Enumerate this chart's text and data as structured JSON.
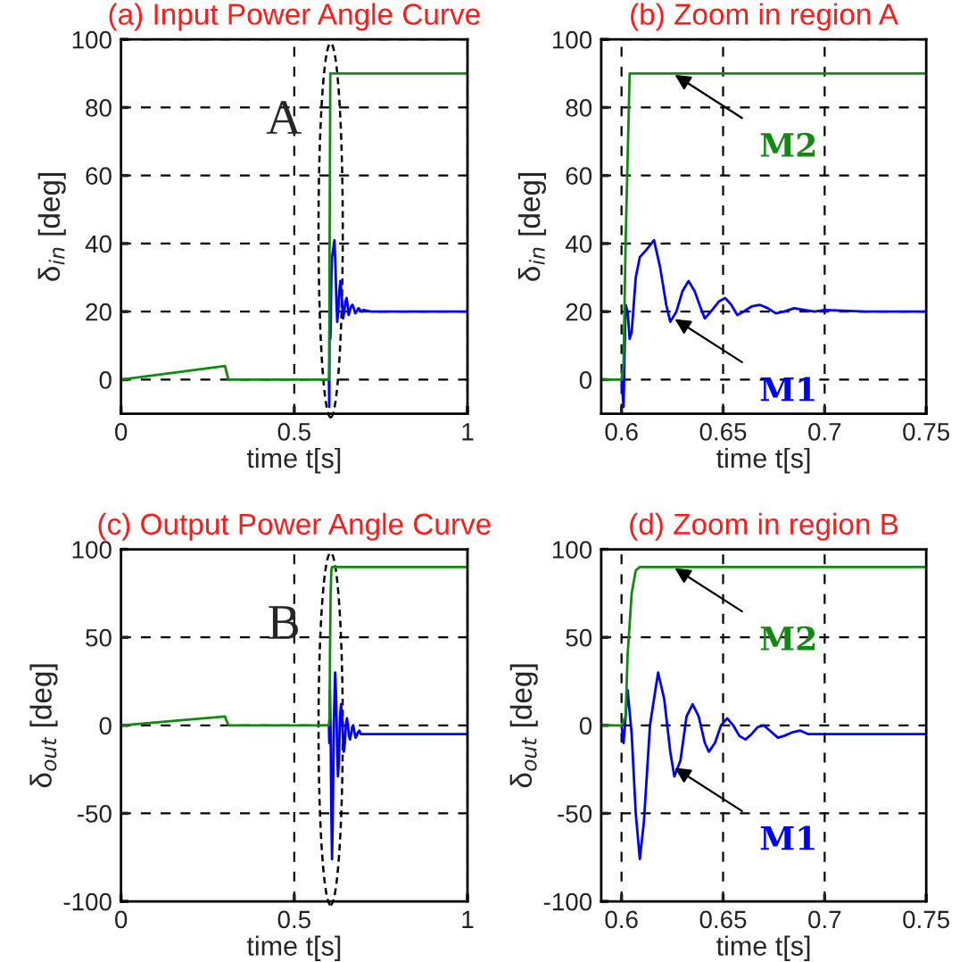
{
  "chart_data": [
    {
      "type": "line",
      "title": "(a) Input Power Angle Curve",
      "xlabel": "time t[s]",
      "ylabel": "δ$_{in}$ [deg]",
      "xlim": [
        0,
        1
      ],
      "xticks": [
        0,
        0.5,
        1
      ],
      "ylim": [
        -10,
        100
      ],
      "yticks": [
        0,
        20,
        40,
        60,
        80,
        100
      ],
      "grid": true,
      "line_style": "solid",
      "annotations": [
        "A"
      ],
      "series": [
        {
          "color": "#0000ff",
          "x": [
            0.6,
            0.601,
            0.602,
            0.603,
            0.604,
            0.605,
            0.607,
            0.609,
            0.612,
            0.616,
            0.619,
            0.622,
            0.624,
            0.627,
            0.63,
            0.633,
            0.636,
            0.639,
            0.641,
            0.644,
            0.648,
            0.651,
            0.654,
            0.657,
            0.66,
            0.664,
            0.668,
            0.672,
            0.676,
            0.68,
            0.685,
            0.69,
            0.695,
            0.7,
            0.72,
            1.0
          ],
          "values": [
            0,
            -8,
            22,
            20,
            12,
            14,
            30,
            36,
            38,
            41,
            33,
            22,
            17,
            20,
            26,
            29,
            26,
            21,
            18,
            20,
            23,
            24,
            22,
            19,
            20,
            21.5,
            22,
            21,
            19.5,
            20,
            21,
            20.5,
            20,
            20.5,
            20,
            20
          ]
        },
        {
          "color": "#108a10",
          "x": [
            0,
            0.3,
            0.31,
            0.6,
            0.601,
            0.602,
            0.603,
            0.604,
            1.0
          ],
          "values": [
            0,
            4,
            0,
            0,
            5,
            40,
            65,
            90,
            90
          ]
        }
      ]
    },
    {
      "type": "line",
      "title": "(b) Zoom in region A",
      "xlabel": "time t[s]",
      "ylabel": "δ$_{in}$ [deg]",
      "xlim": [
        0.59,
        0.75
      ],
      "xticks": [
        0.6,
        0.65,
        0.7,
        0.75
      ],
      "ylim": [
        -10,
        100
      ],
      "yticks": [
        0,
        20,
        40,
        60,
        80,
        100
      ],
      "grid": true,
      "line_style": "solid",
      "series": [
        {
          "name": "M1",
          "color": "#0000ff",
          "x": [
            0.6,
            0.601,
            0.602,
            0.603,
            0.604,
            0.605,
            0.607,
            0.609,
            0.612,
            0.616,
            0.619,
            0.622,
            0.624,
            0.627,
            0.63,
            0.633,
            0.636,
            0.639,
            0.641,
            0.644,
            0.648,
            0.651,
            0.654,
            0.657,
            0.66,
            0.664,
            0.668,
            0.672,
            0.676,
            0.68,
            0.685,
            0.69,
            0.695,
            0.7,
            0.72,
            0.75
          ],
          "values": [
            0,
            -8,
            22,
            20,
            12,
            14,
            30,
            36,
            38,
            41,
            33,
            22,
            17,
            20,
            26,
            29,
            26,
            21,
            18,
            20,
            23,
            24,
            22,
            19,
            20,
            21.5,
            22,
            21,
            19.5,
            20,
            21,
            20.5,
            20,
            20.5,
            20,
            20
          ]
        },
        {
          "name": "M2",
          "color": "#108a10",
          "x": [
            0.59,
            0.6,
            0.601,
            0.602,
            0.603,
            0.604,
            0.75
          ],
          "values": [
            0,
            0,
            5,
            40,
            65,
            90,
            90
          ]
        }
      ]
    },
    {
      "type": "line",
      "title": "(c) Output Power Angle Curve",
      "xlabel": "time t[s]",
      "ylabel": "δ$_{out}$ [deg]",
      "xlim": [
        0,
        1
      ],
      "xticks": [
        0,
        0.5,
        1
      ],
      "ylim": [
        -100,
        100
      ],
      "yticks": [
        -100,
        -50,
        0,
        50,
        100
      ],
      "grid": true,
      "line_style": "solid",
      "annotations": [
        "B"
      ],
      "series": [
        {
          "color": "#0000ff",
          "x": [
            0.6,
            0.601,
            0.603,
            0.605,
            0.607,
            0.609,
            0.611,
            0.614,
            0.618,
            0.621,
            0.624,
            0.626,
            0.629,
            0.632,
            0.635,
            0.638,
            0.641,
            0.643,
            0.646,
            0.649,
            0.652,
            0.655,
            0.658,
            0.661,
            0.664,
            0.667,
            0.67,
            0.673,
            0.677,
            0.68,
            0.684,
            0.688,
            0.692,
            0.7,
            0.72,
            1.0
          ],
          "values": [
            0,
            -10,
            20,
            -5,
            -50,
            -76,
            -55,
            0,
            30,
            15,
            -15,
            -29,
            -20,
            5,
            12,
            5,
            -10,
            -15,
            -10,
            0,
            4,
            0,
            -6,
            -8,
            -5,
            -1,
            0,
            -3,
            -7,
            -6,
            -4,
            -3,
            -5,
            -5,
            -5,
            -5
          ]
        },
        {
          "color": "#108a10",
          "x": [
            0,
            0.3,
            0.31,
            0.6,
            0.602,
            0.603,
            0.605,
            0.607,
            0.609,
            1.0
          ],
          "values": [
            0,
            5,
            0,
            0,
            5,
            40,
            75,
            88,
            90,
            90
          ]
        }
      ]
    },
    {
      "type": "line",
      "title": "(d) Zoom in region B",
      "xlabel": "time t[s]",
      "ylabel": "δ$_{out}$ [deg]",
      "xlim": [
        0.59,
        0.75
      ],
      "xticks": [
        0.6,
        0.65,
        0.7,
        0.75
      ],
      "ylim": [
        -100,
        100
      ],
      "yticks": [
        -100,
        -50,
        0,
        50,
        100
      ],
      "grid": true,
      "line_style": "solid",
      "series": [
        {
          "name": "M1",
          "color": "#0000ff",
          "x": [
            0.6,
            0.601,
            0.603,
            0.605,
            0.607,
            0.609,
            0.611,
            0.614,
            0.618,
            0.621,
            0.624,
            0.626,
            0.629,
            0.632,
            0.635,
            0.638,
            0.641,
            0.643,
            0.646,
            0.649,
            0.652,
            0.655,
            0.658,
            0.661,
            0.664,
            0.667,
            0.67,
            0.673,
            0.677,
            0.68,
            0.684,
            0.688,
            0.692,
            0.7,
            0.72,
            0.75
          ],
          "values": [
            0,
            -10,
            20,
            -5,
            -50,
            -76,
            -55,
            0,
            30,
            15,
            -15,
            -29,
            -20,
            5,
            12,
            5,
            -10,
            -15,
            -10,
            0,
            4,
            0,
            -6,
            -8,
            -5,
            -1,
            0,
            -3,
            -7,
            -6,
            -4,
            -3,
            -5,
            -5,
            -5,
            -5
          ]
        },
        {
          "name": "M2",
          "color": "#108a10",
          "x": [
            0.59,
            0.6,
            0.602,
            0.603,
            0.605,
            0.607,
            0.609,
            0.75
          ],
          "values": [
            0,
            0,
            5,
            40,
            75,
            88,
            90,
            90
          ]
        }
      ]
    }
  ]
}
